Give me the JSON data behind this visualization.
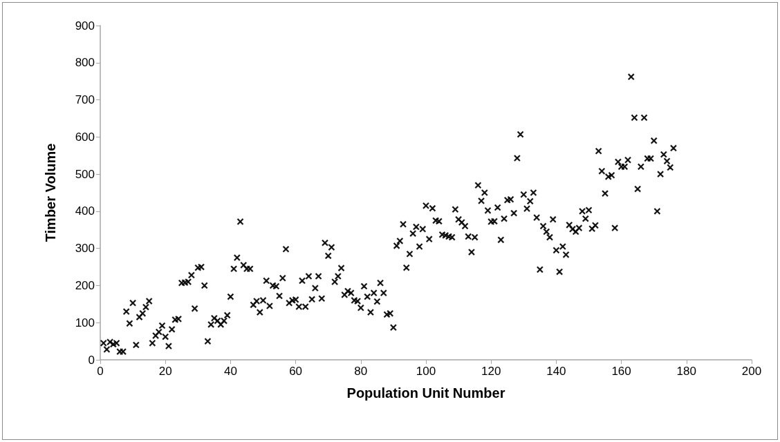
{
  "chart_data": {
    "type": "scatter",
    "xlabel": "Population Unit Number",
    "ylabel": "Timber Volume",
    "x": [
      1,
      2,
      3,
      4,
      5,
      6,
      7,
      8,
      9,
      10,
      11,
      12,
      13,
      14,
      15,
      16,
      17,
      18,
      19,
      20,
      21,
      22,
      23,
      24,
      25,
      26,
      27,
      28,
      29,
      30,
      31,
      32,
      33,
      34,
      35,
      36,
      37,
      38,
      39,
      40,
      41,
      42,
      43,
      44,
      45,
      46,
      47,
      48,
      49,
      50,
      51,
      52,
      53,
      54,
      55,
      56,
      57,
      58,
      59,
      60,
      61,
      62,
      63,
      64,
      65,
      66,
      67,
      68,
      69,
      70,
      71,
      72,
      73,
      74,
      75,
      76,
      77,
      78,
      79,
      80,
      81,
      82,
      83,
      84,
      85,
      86,
      87,
      88,
      89,
      90,
      91,
      92,
      93,
      94,
      95,
      96,
      97,
      98,
      99,
      100,
      101,
      102,
      103,
      104,
      105,
      106,
      107,
      108,
      109,
      110,
      111,
      112,
      113,
      114,
      115,
      116,
      117,
      118,
      119,
      120,
      121,
      122,
      123,
      124,
      125,
      126,
      127,
      128,
      129,
      130,
      131,
      132,
      133,
      134,
      135,
      136,
      137,
      138,
      139,
      140,
      141,
      142,
      143,
      144,
      145,
      146,
      147,
      148,
      149,
      150,
      151,
      152,
      153,
      154,
      155,
      156,
      157,
      158,
      159,
      160,
      161,
      162,
      163,
      164,
      165,
      166,
      167,
      168,
      169,
      170,
      171,
      172,
      173,
      174,
      175,
      176
    ],
    "series": [
      {
        "color": "#000000",
        "values": [
          45,
          28,
          48,
          42,
          45,
          22,
          22,
          130,
          98,
          153,
          40,
          115,
          125,
          142,
          158,
          45,
          65,
          75,
          92,
          62,
          37,
          82,
          108,
          110,
          207,
          208,
          210,
          228,
          138,
          248,
          250,
          200,
          50,
          95,
          112,
          105,
          95,
          105,
          120,
          170,
          245,
          275,
          372,
          255,
          245,
          245,
          148,
          158,
          128,
          160,
          213,
          145,
          200,
          198,
          172,
          220,
          298,
          153,
          160,
          162,
          143,
          213,
          143,
          225,
          163,
          193,
          225,
          165,
          315,
          280,
          303,
          210,
          225,
          247,
          175,
          185,
          180,
          160,
          158,
          140,
          198,
          170,
          128,
          180,
          157,
          207,
          180,
          122,
          125,
          87,
          307,
          320,
          365,
          248,
          285,
          340,
          358,
          305,
          352,
          415,
          325,
          408,
          375,
          373,
          337,
          335,
          332,
          330,
          405,
          378,
          370,
          360,
          332,
          290,
          330,
          470,
          428,
          450,
          402,
          372,
          373,
          410,
          323,
          380,
          430,
          432,
          395,
          543,
          607,
          445,
          407,
          427,
          450,
          383,
          243,
          360,
          345,
          330,
          378,
          295,
          237,
          305,
          283,
          363,
          352,
          345,
          355,
          400,
          380,
          403,
          353,
          362,
          562,
          508,
          448,
          493,
          497,
          355,
          533,
          520,
          520,
          538,
          762,
          652,
          460,
          520,
          652,
          542,
          542,
          590,
          400,
          500,
          553,
          535,
          518,
          570
        ]
      }
    ],
    "xlim": [
      0,
      200
    ],
    "xticks": [
      0,
      20,
      40,
      60,
      80,
      100,
      120,
      140,
      160,
      180,
      200
    ],
    "ylim": [
      0,
      900
    ],
    "yticks": [
      0,
      100,
      200,
      300,
      400,
      500,
      600,
      700,
      800,
      900
    ],
    "grid": false,
    "marker": "cross"
  }
}
